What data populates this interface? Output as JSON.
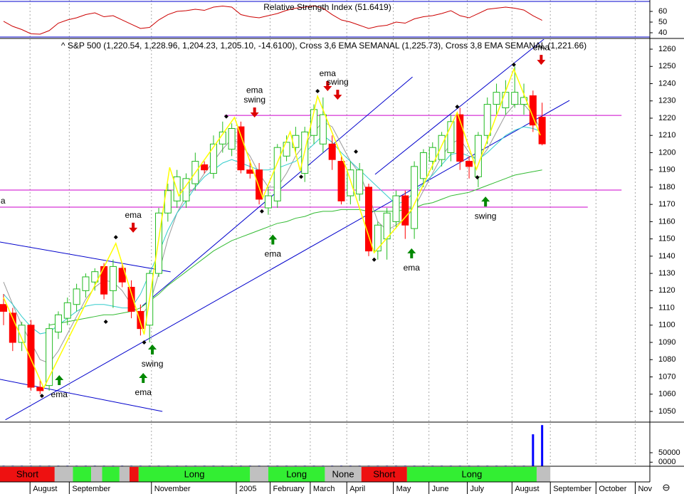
{
  "chart_data": [
    {
      "type": "line",
      "title": "Relative Strength Index (51.6419)",
      "color": "#cc0000",
      "values": [
        50.7,
        46,
        43,
        39,
        38.7,
        42,
        49,
        52,
        54,
        57,
        58.7,
        55,
        56,
        52,
        48,
        44,
        45,
        52,
        57,
        60,
        60.7,
        62,
        61,
        64,
        65,
        64,
        57,
        55,
        54,
        56,
        58,
        61,
        63,
        64,
        65.3,
        63,
        57,
        52,
        50,
        47,
        44,
        46,
        47,
        50,
        49,
        53,
        55,
        56,
        58,
        60.7,
        56,
        54,
        58,
        62,
        63,
        64,
        63,
        61.3,
        56,
        51.6419
      ],
      "ylim": [
        36,
        70.7
      ],
      "yticks": [
        40,
        50,
        60
      ]
    },
    {
      "type": "candlestick",
      "title": "^ S&P 500 (1,220.54, 1,228.96, 1,204.23, 1,205.10, -14.6100), Cross 3,6 EMA SEMANAL (1,225.73), Cross 3,8 EMA SEMANAL (1,221.66)",
      "x": [
        0,
        1,
        2,
        3,
        4,
        5,
        6,
        7,
        8,
        9,
        10,
        11,
        12,
        13,
        14,
        15,
        16,
        17,
        18,
        19,
        20,
        21,
        22,
        23,
        24,
        25,
        26,
        27,
        28,
        29,
        30,
        31,
        32,
        33,
        34,
        35,
        36,
        37,
        38,
        39,
        40,
        41,
        42,
        43,
        44,
        45,
        46,
        47,
        48,
        49,
        50,
        51,
        52,
        53,
        54,
        55,
        56,
        57,
        58,
        59
      ],
      "open": [
        1112,
        1107,
        1090,
        1100,
        1064,
        1065,
        1096,
        1104,
        1112,
        1120,
        1125,
        1134,
        1120,
        1133,
        1122,
        1108,
        1100,
        1130,
        1165,
        1172,
        1172,
        1182,
        1193,
        1188,
        1205,
        1202,
        1215,
        1190,
        1190,
        1168,
        1172,
        1198,
        1203,
        1188,
        1210,
        1205,
        1205,
        1195,
        1175,
        1176,
        1180,
        1143,
        1150,
        1160,
        1175,
        1156,
        1185,
        1195,
        1196,
        1200,
        1222,
        1195,
        1186,
        1210,
        1228,
        1226,
        1228,
        1228,
        1233,
        1220.54
      ],
      "high": [
        1118,
        1110,
        1102,
        1103,
        1068,
        1101,
        1108,
        1116,
        1124,
        1130,
        1133,
        1136,
        1138,
        1136,
        1126,
        1112,
        1132,
        1168,
        1182,
        1190,
        1188,
        1200,
        1195,
        1210,
        1218,
        1217,
        1218,
        1196,
        1194,
        1180,
        1205,
        1210,
        1215,
        1215,
        1228,
        1232,
        1210,
        1198,
        1195,
        1194,
        1182,
        1160,
        1168,
        1178,
        1178,
        1195,
        1202,
        1206,
        1212,
        1222,
        1226,
        1198,
        1212,
        1232,
        1240,
        1242,
        1250,
        1240,
        1236,
        1228.96
      ],
      "low": [
        1100,
        1085,
        1085,
        1062,
        1060,
        1062,
        1092,
        1100,
        1108,
        1116,
        1120,
        1115,
        1110,
        1122,
        1104,
        1094,
        1090,
        1128,
        1160,
        1168,
        1168,
        1178,
        1188,
        1185,
        1200,
        1198,
        1188,
        1185,
        1170,
        1164,
        1168,
        1195,
        1200,
        1183,
        1205,
        1200,
        1190,
        1170,
        1170,
        1172,
        1140,
        1138,
        1138,
        1156,
        1150,
        1150,
        1180,
        1190,
        1192,
        1195,
        1190,
        1185,
        1180,
        1205,
        1222,
        1222,
        1226,
        1222,
        1212,
        1204.23
      ],
      "close": [
        1108,
        1090,
        1100,
        1064,
        1062,
        1098,
        1106,
        1113,
        1121,
        1128,
        1131,
        1118,
        1134,
        1125,
        1108,
        1098,
        1130,
        1165,
        1178,
        1186,
        1185,
        1195,
        1190,
        1205,
        1212,
        1214,
        1190,
        1188,
        1173,
        1175,
        1203,
        1206,
        1210,
        1212,
        1225,
        1222,
        1196,
        1172,
        1190,
        1190,
        1143,
        1158,
        1165,
        1175,
        1158,
        1192,
        1200,
        1203,
        1210,
        1218,
        1195,
        1192,
        1210,
        1228,
        1235,
        1235,
        1235,
        1232,
        1216,
        1205.1
      ],
      "up_color": "#22bb22",
      "down_color": "#ff0000",
      "lines": [
        {
          "color": "#999999",
          "values": [
            1125,
            1112,
            1100,
            1090,
            1080,
            1078,
            1085,
            1095,
            1105,
            1115,
            1122,
            1126,
            1125,
            1120,
            1112,
            1105,
            1112,
            1130,
            1150,
            1165,
            1175,
            1180,
            1188,
            1195,
            1202,
            1208,
            1205,
            1198,
            1188,
            1180,
            1180,
            1188,
            1198,
            1205,
            1212,
            1218,
            1215,
            1205,
            1195,
            1188,
            1175,
            1160,
            1155,
            1158,
            1162,
            1168,
            1178,
            1188,
            1198,
            1205,
            1208,
            1200,
            1195,
            1202,
            1212,
            1222,
            1228,
            1228,
            1222,
            1212
          ]
        },
        {
          "color": "#33cccc",
          "values": [
            1118,
            1112,
            1105,
            1099,
            1095,
            1096,
            1100,
            1104,
            1108,
            1111,
            1112,
            1112,
            1111,
            1110,
            1110,
            1118,
            1130,
            1142,
            1155,
            1165,
            1172,
            1180,
            1186,
            1190,
            1194,
            1196,
            1194,
            1192,
            1190,
            1190,
            1191,
            1193,
            1195,
            1200,
            1205,
            1210,
            1206,
            1200,
            1195,
            1190,
            1185,
            1180,
            1175,
            1170,
            1172,
            1177,
            1182,
            1187,
            1193,
            1199,
            1200,
            1198,
            1196,
            1200,
            1205,
            1210,
            1213,
            1215,
            1214,
            1212
          ]
        },
        {
          "color": "#33bb33",
          "values": [
            null,
            null,
            null,
            null,
            null,
            1100,
            1101,
            1102,
            1103,
            1104,
            1105,
            1106,
            1106,
            1107,
            1108,
            1110,
            1114,
            1118,
            1123,
            1127,
            1131,
            1135,
            1139,
            1143,
            1146,
            1149,
            1151,
            1153,
            1155,
            1157,
            1159,
            1160,
            1162,
            1163,
            1165,
            1166,
            1166,
            1167,
            1167,
            1167,
            1166,
            1166,
            1166,
            1166,
            1167,
            1168,
            1170,
            1171,
            1173,
            1175,
            1176,
            1177,
            1179,
            1181,
            1183,
            1185,
            1187,
            1188,
            1189,
            1190
          ]
        }
      ],
      "zigzag": {
        "color": "#ffff00",
        "points": [
          [
            0,
            1116
          ],
          [
            4.4,
            1063.6
          ],
          [
            12.3,
            1147.4
          ],
          [
            15.4,
            1094.6
          ],
          [
            18.2,
            1191.5
          ],
          [
            19.2,
            1175
          ],
          [
            25.3,
            1220.4
          ],
          [
            28.4,
            1173.8
          ],
          [
            31.4,
            1212.1
          ],
          [
            32.5,
            1189.5
          ],
          [
            34.4,
            1232.8
          ],
          [
            37.6,
            1190.3
          ],
          [
            40.6,
            1142
          ],
          [
            44.7,
            1166.8
          ],
          [
            49.7,
            1223.3
          ],
          [
            51.8,
            1190.3
          ],
          [
            55.9,
            1248.4
          ],
          [
            58.8,
            1210.1
          ]
        ]
      },
      "trendlines": [
        {
          "color": "#0000cc",
          "points": [
            [
              0.2,
              1045.1
            ],
            [
              62,
              1230.3
            ]
          ]
        },
        {
          "color": "#0000cc",
          "points": [
            [
              15.2,
              1111.1
            ],
            [
              44.8,
              1243.9
            ]
          ]
        },
        {
          "color": "#0000cc",
          "points": [
            [
              40.7,
              1187.4
            ],
            [
              59.2,
              1265.8
            ]
          ]
        },
        {
          "color": "#0000cc",
          "points": [
            [
              -0.4,
              1148.2
            ],
            [
              18.3,
              1130.9
            ]
          ]
        },
        {
          "color": "#0000cc",
          "points": [
            [
              -0.4,
              1068.6
            ],
            [
              17.4,
              1050
            ]
          ]
        }
      ],
      "levels": [
        {
          "value": 1221.6,
          "from": 24.2,
          "to": 67.7,
          "color": "#cc00cc"
        },
        {
          "value": 1178.3,
          "from": -0.4,
          "to": 67.7,
          "color": "#cc00cc"
        },
        {
          "value": 1168.4,
          "from": -0.4,
          "to": 64,
          "color": "#cc00cc",
          "label": "a"
        }
      ],
      "swing_points": [
        [
          4.2,
          1059
        ],
        [
          12.3,
          1151
        ],
        [
          11.2,
          1102
        ],
        [
          15.4,
          1090
        ],
        [
          24.4,
          1221
        ],
        [
          28.3,
          1166
        ],
        [
          32.6,
          1186
        ],
        [
          34.4,
          1235.7
        ],
        [
          38.6,
          1200.6
        ],
        [
          40.6,
          1138
        ],
        [
          49.7,
          1226.6
        ],
        [
          51.9,
          1185.7
        ],
        [
          55.9,
          1251
        ]
      ],
      "annotations": [
        {
          "text": "ema",
          "x": 6.1,
          "y": 1059.5,
          "color": "#008800",
          "arrow": "up"
        },
        {
          "text": "ema",
          "x": 14.2,
          "y": 1163.5,
          "color": "#dd0000",
          "arrow": "down"
        },
        {
          "text": "swing",
          "x": 16.3,
          "y": 1077.2,
          "color": "#008800",
          "arrow": "up"
        },
        {
          "text": "ema",
          "x": 15.3,
          "y": 1060.7,
          "color": "#008800",
          "arrow": "up"
        },
        {
          "text": "ema",
          "x": 27.5,
          "y": 1236,
          "color": "#dd0000"
        },
        {
          "text": "swing",
          "x": 27.5,
          "y": 1230.3,
          "color": "#dd0000",
          "arrow": "down"
        },
        {
          "text": "ema",
          "x": 29.5,
          "y": 1141,
          "color": "#008800",
          "arrow": "up"
        },
        {
          "text": "ema",
          "x": 35.5,
          "y": 1245.6,
          "color": "#dd0000",
          "arrow": "down"
        },
        {
          "text": "swing",
          "x": 36.6,
          "y": 1240.6,
          "color": "#dd0000",
          "arrow": "down"
        },
        {
          "text": "ema",
          "x": 44.7,
          "y": 1133,
          "color": "#008800",
          "arrow": "up"
        },
        {
          "text": "swing",
          "x": 52.8,
          "y": 1163,
          "color": "#008800",
          "arrow": "up"
        },
        {
          "text": "ema",
          "x": 58.9,
          "y": 1260.8,
          "color": "#dd0000",
          "arrow": "down"
        }
      ],
      "xlim": [
        -0.39,
        70.8
      ],
      "xticks": [
        {
          "value": 2.9,
          "label": "August"
        },
        {
          "value": 7.2,
          "label": "September"
        },
        {
          "value": 16.2,
          "label": "November"
        },
        {
          "value": 25.5,
          "label": "2005"
        },
        {
          "value": 29.2,
          "label": "February"
        },
        {
          "value": 33.6,
          "label": "March"
        },
        {
          "value": 37.6,
          "label": "April"
        },
        {
          "value": 42.7,
          "label": "May"
        },
        {
          "value": 46.6,
          "label": "June"
        },
        {
          "value": 50.8,
          "label": "July"
        },
        {
          "value": 55.7,
          "label": "August"
        },
        {
          "value": 59.9,
          "label": "September"
        },
        {
          "value": 64.9,
          "label": "October"
        },
        {
          "value": 69.2,
          "label": "Nov"
        }
      ],
      "ylim": [
        1043.8,
        1265.8
      ],
      "yticks": [
        1050,
        1060,
        1070,
        1080,
        1090,
        1100,
        1110,
        1120,
        1130,
        1140,
        1150,
        1160,
        1170,
        1180,
        1190,
        1200,
        1210,
        1220,
        1230,
        1240,
        1250,
        1260
      ]
    },
    {
      "type": "bar",
      "color": "#0000ff",
      "values": [
        2000,
        2000,
        2000,
        2000,
        2000,
        2000,
        2000,
        2000,
        2000,
        2000,
        2000,
        2000,
        2000,
        2000,
        2000,
        2000,
        2000,
        2000,
        2000,
        2000,
        2000,
        2000,
        2000,
        2000,
        2000,
        2000,
        2000,
        2000,
        2000,
        2000,
        2000,
        2000,
        2000,
        2000,
        2000,
        2000,
        2000,
        2000,
        2000,
        2000,
        2000,
        2000,
        2000,
        2000,
        2000,
        2000,
        2000,
        2000,
        2000,
        2000,
        2000,
        2000,
        2000,
        2000,
        2000,
        2000,
        2000,
        2000,
        118000,
        152000
      ],
      "ylim": [
        0,
        163000
      ],
      "yticks": [
        {
          "value": 15000,
          "label": "0000"
        },
        50000
      ]
    }
  ],
  "status_bar": {
    "segments": [
      {
        "from": -0.4,
        "to": 5.6,
        "color": "#ee1111",
        "label": "Short"
      },
      {
        "from": 5.6,
        "to": 7.6,
        "color": "#c0c0c0"
      },
      {
        "from": 7.6,
        "to": 9.6,
        "color": "#33ee33"
      },
      {
        "from": 9.6,
        "to": 10.8,
        "color": "#c0c0c0"
      },
      {
        "from": 10.8,
        "to": 12.7,
        "color": "#33ee33"
      },
      {
        "from": 12.7,
        "to": 13.8,
        "color": "#c0c0c0"
      },
      {
        "from": 13.8,
        "to": 14.8,
        "color": "#ee1111"
      },
      {
        "from": 14.8,
        "to": 27,
        "color": "#33ee33",
        "label": "Long"
      },
      {
        "from": 27,
        "to": 29,
        "color": "#c0c0c0"
      },
      {
        "from": 29,
        "to": 35.2,
        "color": "#33ee33",
        "label": "Long"
      },
      {
        "from": 35.2,
        "to": 39.2,
        "color": "#c0c0c0",
        "label": "None"
      },
      {
        "from": 39.2,
        "to": 44.2,
        "color": "#ee1111",
        "label": "Short"
      },
      {
        "from": 44.2,
        "to": 58.4,
        "color": "#33ee33",
        "label": "Long"
      },
      {
        "from": 58.4,
        "to": 59.9,
        "color": "#c0c0c0"
      }
    ]
  }
}
